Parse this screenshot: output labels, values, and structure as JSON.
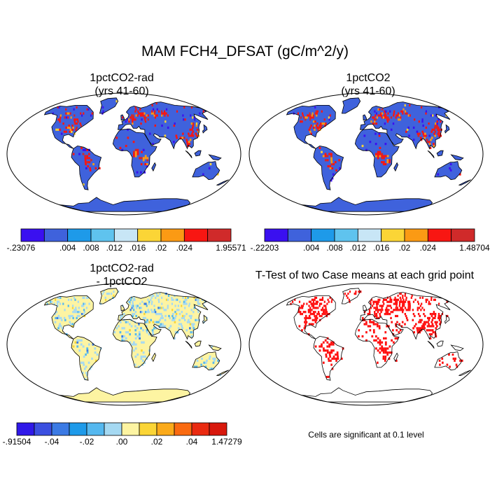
{
  "title": "MAM FCH4_DFSAT (gC/m^2/y)",
  "panels": [
    {
      "title_line1": "1pctCO2-rad",
      "title_line2": "(yrs 41-60)",
      "colorbar": {
        "colors": [
          "#3a10f0",
          "#3f62dc",
          "#1e9ae9",
          "#5fc3ee",
          "#c8e6f6",
          "#fbd536",
          "#fb9a14",
          "#f81612",
          "#d02a2a"
        ],
        "labels": [
          "-.23076",
          ".004",
          ".008",
          ".012",
          ".016",
          ".02",
          ".024",
          "1.95571"
        ]
      }
    },
    {
      "title_line1": "1pctCO2",
      "title_line2": "(yrs 41-60)",
      "colorbar": {
        "colors": [
          "#3a10f0",
          "#3f62dc",
          "#1e9ae9",
          "#5fc3ee",
          "#c8e6f6",
          "#fbd536",
          "#fb9a14",
          "#f81612",
          "#d02a2a"
        ],
        "labels": [
          "-.22203",
          ".004",
          ".008",
          ".012",
          ".016",
          ".02",
          ".024",
          "1.48704"
        ]
      }
    },
    {
      "title_line1": "1pctCO2-rad",
      "title_line2": "- 1pctCO2",
      "colorbar": {
        "colors": [
          "#2f18e8",
          "#3b4fe0",
          "#3b7ae4",
          "#1e9ae9",
          "#55b8ef",
          "#a5d9f2",
          "#fdf4a2",
          "#fbd536",
          "#fbaa1a",
          "#fa6a10",
          "#ea2a10",
          "#d8180c"
        ],
        "labels": [
          "-.91504",
          "-.04",
          "-.02",
          ".00",
          ".02",
          ".04",
          "1.47279"
        ]
      }
    },
    {
      "title_line1": "T-Test of two Case means at each grid point",
      "note": "Cells are significant at 0.1 level"
    }
  ]
}
